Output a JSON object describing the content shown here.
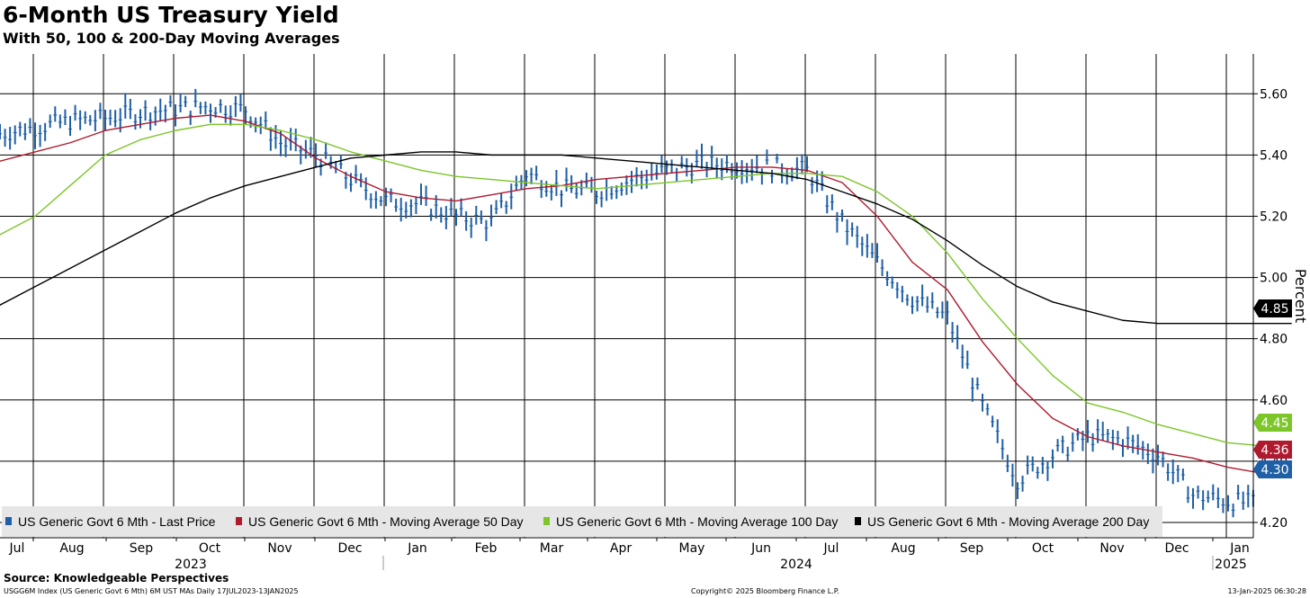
{
  "title": "6-Month US Treasury Yield",
  "subtitle": "With 50, 100 & 200-Day Moving Averages",
  "source": "Source: Knowledgeable Perspectives",
  "footer_left": "USGG6M Index (US Generic Govt 6 Mth) 6M UST MAs  Daily 17JUL2023-13JAN2025",
  "footer_mid": "Copyright© 2025 Bloomberg Finance L.P.",
  "footer_right": "13-Jan-2025 06:30:28",
  "colors": {
    "last": "#1F5FA6",
    "ma50": "#B01A2E",
    "ma100": "#7CC629",
    "ma200": "#000000",
    "grid": "#000000"
  },
  "chart_data": {
    "type": "line",
    "x_unit": "month",
    "x_labels": [
      "Jul",
      "Aug",
      "Sep",
      "Oct",
      "Nov",
      "Dec",
      "Jan",
      "Feb",
      "Mar",
      "Apr",
      "May",
      "Jun",
      "Jul",
      "Aug",
      "Sep",
      "Oct",
      "Nov",
      "Dec",
      "Jan"
    ],
    "year_labels": [
      {
        "label": "2023",
        "from": 0,
        "to": 6
      },
      {
        "label": "2024",
        "from": 6,
        "to": 18
      },
      {
        "label": "2025",
        "from": 18,
        "to": 18.45
      }
    ],
    "x": [
      0,
      0.5,
      1,
      1.5,
      2,
      2.5,
      3,
      3.5,
      4,
      4.5,
      5,
      5.5,
      6,
      6.5,
      7,
      7.5,
      8,
      8.5,
      9,
      9.5,
      10,
      10.5,
      11,
      11.5,
      12,
      12.5,
      13,
      13.5,
      14,
      14.5,
      15,
      15.5,
      16,
      16.5,
      17,
      17.5,
      18,
      18.4
    ],
    "ylabel": "Percent",
    "ylim": [
      4.15,
      5.73
    ],
    "yticks": [
      4.2,
      4.4,
      4.6,
      4.8,
      5.0,
      5.2,
      5.4,
      5.6
    ],
    "grid": true,
    "legend_position": "bottom",
    "series": [
      {
        "name": "US Generic Govt 6 Mth - Last Price",
        "kind": "bar",
        "last_label": "4.30",
        "values": [
          5.47,
          5.49,
          5.51,
          5.52,
          5.54,
          5.55,
          5.56,
          5.55,
          5.44,
          5.4,
          5.32,
          5.25,
          5.24,
          5.2,
          5.18,
          5.34,
          5.29,
          5.28,
          5.32,
          5.35,
          5.37,
          5.37,
          5.36,
          5.35,
          5.18,
          5.05,
          4.93,
          4.87,
          4.58,
          4.34,
          4.42,
          4.48,
          4.47,
          4.42,
          4.29,
          4.27,
          4.26,
          4.3
        ]
      },
      {
        "name": "US Generic Govt 6 Mth - Moving Average 50 Day",
        "kind": "line",
        "last_label": "4.36",
        "values": [
          5.38,
          5.41,
          5.44,
          5.48,
          5.5,
          5.52,
          5.53,
          5.51,
          5.47,
          5.39,
          5.33,
          5.28,
          5.26,
          5.25,
          5.27,
          5.29,
          5.3,
          5.32,
          5.33,
          5.34,
          5.35,
          5.36,
          5.36,
          5.35,
          5.31,
          5.2,
          5.05,
          4.96,
          4.79,
          4.65,
          4.54,
          4.48,
          4.45,
          4.43,
          4.41,
          4.38,
          4.36,
          4.36
        ]
      },
      {
        "name": "US Generic Govt 6 Mth - Moving Average 100 Day",
        "kind": "line",
        "last_label": "4.45",
        "values": [
          5.14,
          5.2,
          5.3,
          5.4,
          5.45,
          5.48,
          5.5,
          5.5,
          5.48,
          5.45,
          5.41,
          5.38,
          5.35,
          5.33,
          5.32,
          5.31,
          5.3,
          5.29,
          5.3,
          5.31,
          5.32,
          5.33,
          5.34,
          5.34,
          5.33,
          5.28,
          5.2,
          5.08,
          4.93,
          4.8,
          4.68,
          4.59,
          4.56,
          4.52,
          4.49,
          4.46,
          4.45,
          4.45
        ]
      },
      {
        "name": "US Generic Govt 6 Mth - Moving Average 200 Day",
        "kind": "line",
        "last_label": "4.85",
        "values": [
          4.91,
          4.97,
          5.03,
          5.09,
          5.15,
          5.21,
          5.26,
          5.3,
          5.33,
          5.36,
          5.39,
          5.4,
          5.41,
          5.41,
          5.4,
          5.4,
          5.4,
          5.39,
          5.38,
          5.37,
          5.36,
          5.35,
          5.34,
          5.32,
          5.28,
          5.24,
          5.19,
          5.12,
          5.04,
          4.97,
          4.92,
          4.89,
          4.86,
          4.85,
          4.85,
          4.85,
          4.85,
          4.85
        ]
      }
    ]
  }
}
